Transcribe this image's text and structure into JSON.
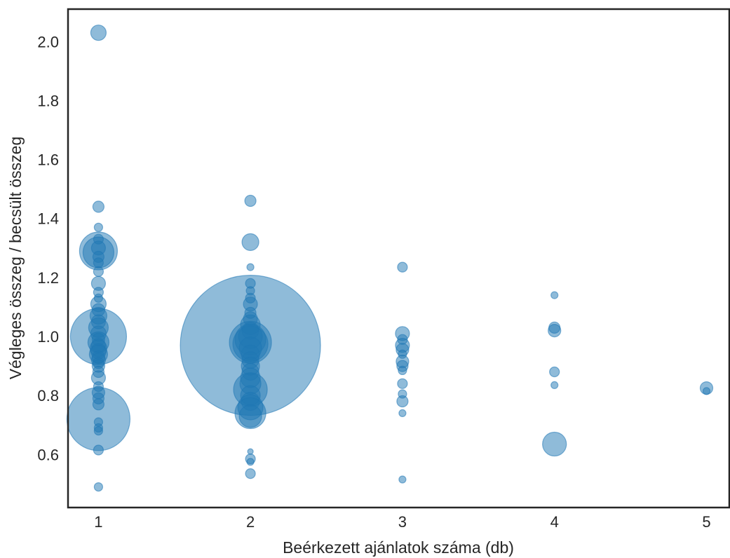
{
  "chart_data": {
    "type": "scatter",
    "title": "",
    "xlabel": "Beérkezett ajánlatok száma (db)",
    "ylabel": "Végleges összeg / becsült összeg",
    "xlim": [
      0.8,
      5.15
    ],
    "ylim": [
      0.42,
      2.11
    ],
    "xticks": [
      "1",
      "2",
      "3",
      "4",
      "5"
    ],
    "yticks": [
      "0.6",
      "0.8",
      "1.0",
      "1.2",
      "1.4",
      "1.6",
      "1.8",
      "2.0"
    ],
    "grid": false,
    "color": "#1f77b4",
    "opacity": 0.5,
    "series": [
      {
        "points": [
          {
            "x": 1,
            "y": 2.03,
            "r": 11
          },
          {
            "x": 1,
            "y": 1.44,
            "r": 8
          },
          {
            "x": 1,
            "y": 1.37,
            "r": 6
          },
          {
            "x": 1,
            "y": 1.33,
            "r": 7
          },
          {
            "x": 1,
            "y": 1.29,
            "r": 27
          },
          {
            "x": 1,
            "y": 1.285,
            "r": 22
          },
          {
            "x": 1,
            "y": 1.3,
            "r": 10
          },
          {
            "x": 1,
            "y": 1.27,
            "r": 8
          },
          {
            "x": 1,
            "y": 1.25,
            "r": 7
          },
          {
            "x": 1,
            "y": 1.22,
            "r": 7
          },
          {
            "x": 1,
            "y": 1.18,
            "r": 10
          },
          {
            "x": 1,
            "y": 1.15,
            "r": 7
          },
          {
            "x": 1,
            "y": 1.13,
            "r": 6
          },
          {
            "x": 1,
            "y": 1.11,
            "r": 11
          },
          {
            "x": 1,
            "y": 1.09,
            "r": 9
          },
          {
            "x": 1,
            "y": 1.07,
            "r": 12
          },
          {
            "x": 1,
            "y": 1.05,
            "r": 10
          },
          {
            "x": 1,
            "y": 1.03,
            "r": 14
          },
          {
            "x": 1,
            "y": 1.01,
            "r": 11
          },
          {
            "x": 1,
            "y": 1.0,
            "r": 40
          },
          {
            "x": 1,
            "y": 0.99,
            "r": 9
          },
          {
            "x": 1,
            "y": 0.98,
            "r": 15
          },
          {
            "x": 1,
            "y": 0.97,
            "r": 10
          },
          {
            "x": 1,
            "y": 0.96,
            "r": 12
          },
          {
            "x": 1,
            "y": 0.95,
            "r": 11
          },
          {
            "x": 1,
            "y": 0.94,
            "r": 13
          },
          {
            "x": 1,
            "y": 0.93,
            "r": 9
          },
          {
            "x": 1,
            "y": 0.92,
            "r": 10
          },
          {
            "x": 1,
            "y": 0.91,
            "r": 8
          },
          {
            "x": 1,
            "y": 0.9,
            "r": 9
          },
          {
            "x": 1,
            "y": 0.88,
            "r": 8
          },
          {
            "x": 1,
            "y": 0.86,
            "r": 10
          },
          {
            "x": 1,
            "y": 0.83,
            "r": 7
          },
          {
            "x": 1,
            "y": 0.81,
            "r": 9
          },
          {
            "x": 1,
            "y": 0.79,
            "r": 8
          },
          {
            "x": 1,
            "y": 0.77,
            "r": 8
          },
          {
            "x": 1,
            "y": 0.72,
            "r": 45
          },
          {
            "x": 1,
            "y": 0.71,
            "r": 6
          },
          {
            "x": 1,
            "y": 0.69,
            "r": 6
          },
          {
            "x": 1,
            "y": 0.68,
            "r": 6
          },
          {
            "x": 1,
            "y": 0.615,
            "r": 7
          },
          {
            "x": 1,
            "y": 0.49,
            "r": 6
          },
          {
            "x": 2,
            "y": 1.46,
            "r": 8
          },
          {
            "x": 2,
            "y": 1.32,
            "r": 12
          },
          {
            "x": 2,
            "y": 1.235,
            "r": 5
          },
          {
            "x": 2,
            "y": 1.18,
            "r": 7
          },
          {
            "x": 2,
            "y": 1.155,
            "r": 6
          },
          {
            "x": 2,
            "y": 1.13,
            "r": 7
          },
          {
            "x": 2,
            "y": 1.11,
            "r": 10
          },
          {
            "x": 2,
            "y": 1.08,
            "r": 8
          },
          {
            "x": 2,
            "y": 1.06,
            "r": 10
          },
          {
            "x": 2,
            "y": 1.04,
            "r": 14
          },
          {
            "x": 2,
            "y": 1.02,
            "r": 12
          },
          {
            "x": 2,
            "y": 1.0,
            "r": 17
          },
          {
            "x": 2,
            "y": 0.99,
            "r": 22
          },
          {
            "x": 2,
            "y": 0.98,
            "r": 30
          },
          {
            "x": 2,
            "y": 0.975,
            "r": 25
          },
          {
            "x": 2,
            "y": 0.97,
            "r": 100
          },
          {
            "x": 2,
            "y": 0.96,
            "r": 16
          },
          {
            "x": 2,
            "y": 0.94,
            "r": 13
          },
          {
            "x": 2,
            "y": 0.92,
            "r": 12
          },
          {
            "x": 2,
            "y": 0.9,
            "r": 13
          },
          {
            "x": 2,
            "y": 0.88,
            "r": 12
          },
          {
            "x": 2,
            "y": 0.86,
            "r": 14
          },
          {
            "x": 2,
            "y": 0.84,
            "r": 15
          },
          {
            "x": 2,
            "y": 0.82,
            "r": 24
          },
          {
            "x": 2,
            "y": 0.8,
            "r": 14
          },
          {
            "x": 2,
            "y": 0.78,
            "r": 13
          },
          {
            "x": 2,
            "y": 0.76,
            "r": 18
          },
          {
            "x": 2,
            "y": 0.74,
            "r": 22
          },
          {
            "x": 2,
            "y": 0.73,
            "r": 16
          },
          {
            "x": 2,
            "y": 0.61,
            "r": 4
          },
          {
            "x": 2,
            "y": 0.585,
            "r": 7
          },
          {
            "x": 2,
            "y": 0.575,
            "r": 5
          },
          {
            "x": 2,
            "y": 0.535,
            "r": 7
          },
          {
            "x": 3,
            "y": 1.235,
            "r": 7
          },
          {
            "x": 3,
            "y": 1.01,
            "r": 10
          },
          {
            "x": 3,
            "y": 0.99,
            "r": 7
          },
          {
            "x": 3,
            "y": 0.97,
            "r": 10
          },
          {
            "x": 3,
            "y": 0.955,
            "r": 9
          },
          {
            "x": 3,
            "y": 0.94,
            "r": 6
          },
          {
            "x": 3,
            "y": 0.915,
            "r": 9
          },
          {
            "x": 3,
            "y": 0.9,
            "r": 8
          },
          {
            "x": 3,
            "y": 0.885,
            "r": 6
          },
          {
            "x": 3,
            "y": 0.84,
            "r": 7
          },
          {
            "x": 3,
            "y": 0.805,
            "r": 6
          },
          {
            "x": 3,
            "y": 0.78,
            "r": 8
          },
          {
            "x": 3,
            "y": 0.74,
            "r": 5
          },
          {
            "x": 3,
            "y": 0.515,
            "r": 5
          },
          {
            "x": 4,
            "y": 1.14,
            "r": 5
          },
          {
            "x": 4,
            "y": 1.03,
            "r": 8
          },
          {
            "x": 4,
            "y": 1.02,
            "r": 9
          },
          {
            "x": 4,
            "y": 0.88,
            "r": 7
          },
          {
            "x": 4,
            "y": 0.835,
            "r": 5
          },
          {
            "x": 4,
            "y": 0.635,
            "r": 17
          },
          {
            "x": 5,
            "y": 0.825,
            "r": 9
          },
          {
            "x": 5,
            "y": 0.815,
            "r": 5
          }
        ]
      }
    ]
  }
}
